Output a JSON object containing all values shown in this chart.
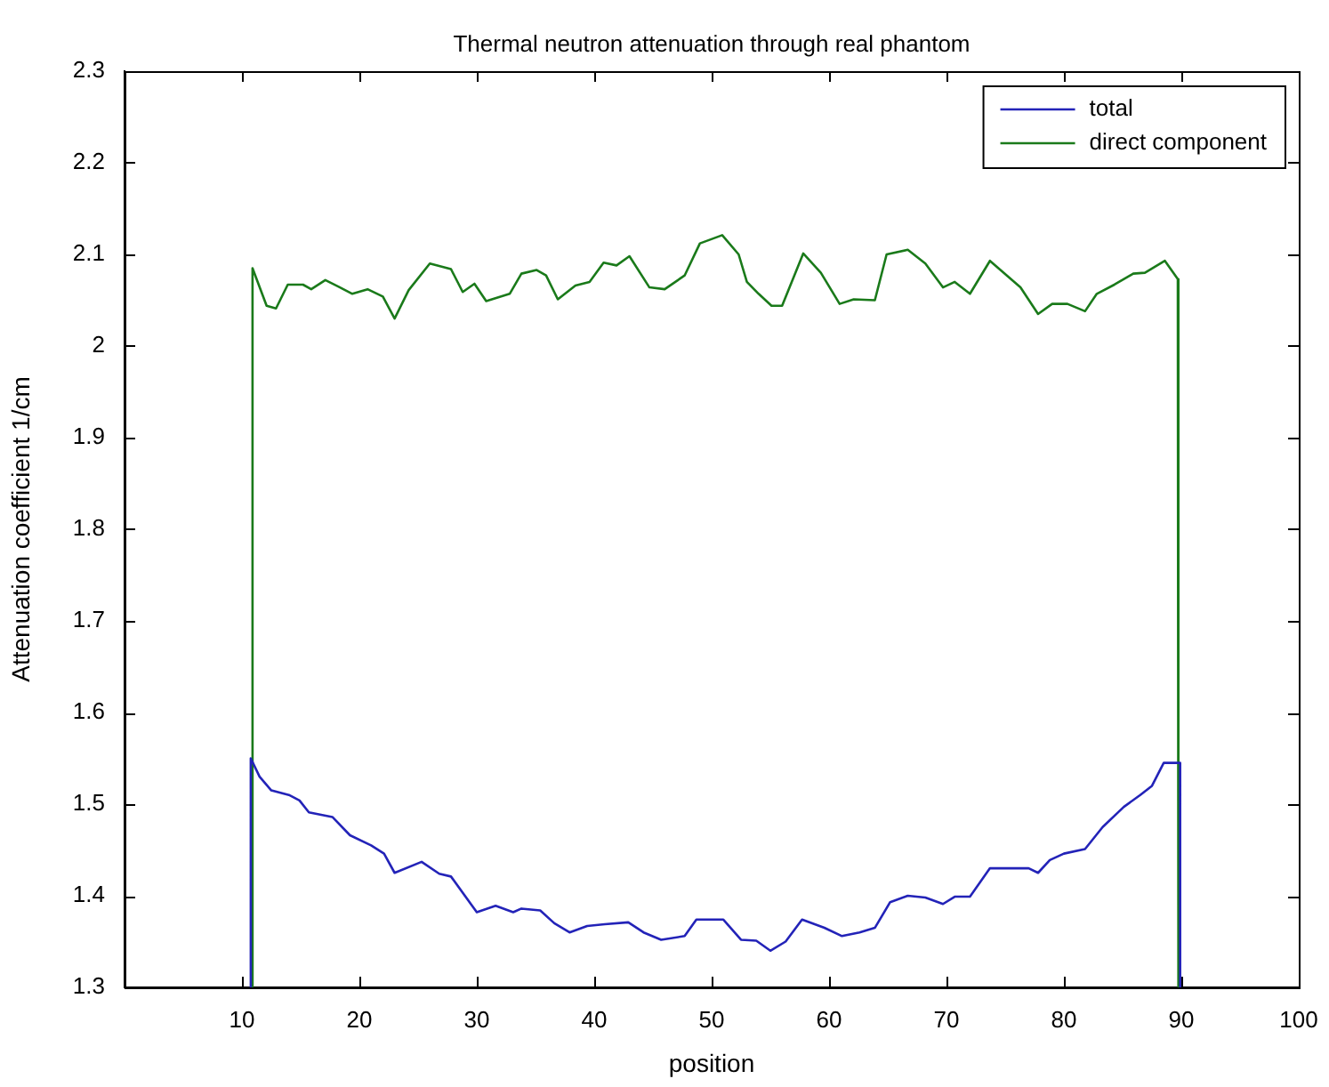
{
  "chart_data": {
    "type": "line",
    "title": "Thermal neutron attenuation through real phantom",
    "xlabel": "position",
    "ylabel": "Attenuation coefficient 1/cm",
    "xlim": [
      0,
      100
    ],
    "xticks": [
      10,
      20,
      30,
      40,
      50,
      60,
      70,
      80,
      90,
      100
    ],
    "ylim": [
      1.3,
      2.3
    ],
    "yticks": [
      1.3,
      1.4,
      1.5,
      1.6,
      1.7,
      1.8,
      1.9,
      2,
      2.1,
      2.2,
      2.3
    ],
    "legend": "top right",
    "grid": false,
    "marker": "none",
    "line_style": "solid",
    "series": [
      {
        "name": "total",
        "color": "#2323b8",
        "x": [
          10.7,
          10.75,
          11.5,
          12.5,
          14,
          14.9,
          15.7,
          17.7,
          19.2,
          21.0,
          22.1,
          23.0,
          25.3,
          26.8,
          27.8,
          30.0,
          31.6,
          33.1,
          33.8,
          35.4,
          36.6,
          37.9,
          39.4,
          40.9,
          42.9,
          44.2,
          45.7,
          47.7,
          48.7,
          51.0,
          52.5,
          53.8,
          55.0,
          56.3,
          57.7,
          59.6,
          61.1,
          62.6,
          63.9,
          65.2,
          66.7,
          68.2,
          69.7,
          70.7,
          72.0,
          73.7,
          75.8,
          77.0,
          77.8,
          78.8,
          80.0,
          81.8,
          83.3,
          85.1,
          86.5,
          87.5,
          88.5,
          89.9,
          89.9
        ],
        "values": [
          1.3,
          1.55,
          1.53,
          1.515,
          1.51,
          1.504,
          1.491,
          1.486,
          1.466,
          1.455,
          1.446,
          1.425,
          1.437,
          1.424,
          1.421,
          1.382,
          1.389,
          1.382,
          1.386,
          1.384,
          1.37,
          1.36,
          1.367,
          1.369,
          1.371,
          1.36,
          1.352,
          1.356,
          1.374,
          1.374,
          1.352,
          1.351,
          1.34,
          1.35,
          1.374,
          1.365,
          1.356,
          1.36,
          1.365,
          1.393,
          1.4,
          1.398,
          1.391,
          1.399,
          1.399,
          1.43,
          1.43,
          1.43,
          1.425,
          1.439,
          1.446,
          1.451,
          1.475,
          1.497,
          1.51,
          1.52,
          1.545,
          1.545,
          1.3
        ]
      },
      {
        "name": "direct component",
        "color": "#1a7a1a",
        "x": [
          10.85,
          10.9,
          12.1,
          12.9,
          13.9,
          15.2,
          15.9,
          17.1,
          18.2,
          19.4,
          20.7,
          22.0,
          23.0,
          24.2,
          26.0,
          27.8,
          28.8,
          29.8,
          30.8,
          32.8,
          33.8,
          35.1,
          35.9,
          36.9,
          38.4,
          39.6,
          40.8,
          41.9,
          43.0,
          44.7,
          46.0,
          47.7,
          49.0,
          50.9,
          52.3,
          53.0,
          54.0,
          55.1,
          56.0,
          57.8,
          59.3,
          60.9,
          62.1,
          63.9,
          64.9,
          66.7,
          68.2,
          69.7,
          70.7,
          72.0,
          73.7,
          76.3,
          77.8,
          79.0,
          80.3,
          81.8,
          82.8,
          84.3,
          85.9,
          86.9,
          88.6,
          89.7,
          89.75
        ],
        "values": [
          1.3,
          2.085,
          2.044,
          2.041,
          2.067,
          2.067,
          2.062,
          2.072,
          2.065,
          2.057,
          2.062,
          2.054,
          2.03,
          2.061,
          2.09,
          2.084,
          2.059,
          2.068,
          2.049,
          2.057,
          2.079,
          2.083,
          2.077,
          2.051,
          2.066,
          2.07,
          2.091,
          2.088,
          2.098,
          2.064,
          2.062,
          2.077,
          2.112,
          2.121,
          2.1,
          2.07,
          2.057,
          2.044,
          2.044,
          2.101,
          2.08,
          2.046,
          2.051,
          2.05,
          2.1,
          2.105,
          2.09,
          2.064,
          2.07,
          2.057,
          2.093,
          2.064,
          2.035,
          2.046,
          2.046,
          2.038,
          2.057,
          2.067,
          2.079,
          2.08,
          2.093,
          2.073,
          1.3
        ]
      }
    ]
  }
}
